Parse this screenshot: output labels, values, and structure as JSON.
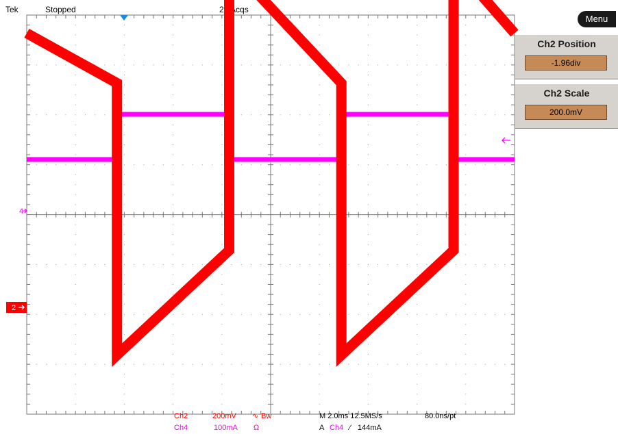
{
  "header": {
    "brand": "Tek",
    "run_state": "Stopped",
    "acquisitions": "26 Acqs"
  },
  "menu_button": "Menu",
  "side_panels": [
    {
      "title": "Ch2 Position",
      "value": "-1.96div"
    },
    {
      "title": "Ch2 Scale",
      "value": "200.0mV"
    }
  ],
  "markers": {
    "ch4": "4",
    "ch2": "2"
  },
  "readout": {
    "ch2_name": "Ch2",
    "ch2_scale": "200mV",
    "ch2_coupling": "∿",
    "ch4_name": "Ch4",
    "ch4_scale": "100mA",
    "ch4_term": "Ω",
    "bw": "Bw",
    "timebase": "M 2.0ms 12.5MS/s",
    "record": "80.0ns/pt",
    "trigger_prefix": "A",
    "trigger_source": "Ch4",
    "trigger_slope": "⁄",
    "trigger_level": "144mA"
  },
  "colors": {
    "ch2": "#ff0000",
    "ch4": "#ff00ff",
    "trigger_marker": "#1a8cd8",
    "panel_value_bg": "#c58a55"
  },
  "chart_data": {
    "type": "line",
    "x_unit": "ms",
    "x_range": [
      0,
      20
    ],
    "series": [
      {
        "name": "Ch4",
        "unit": "mA",
        "segments": [
          {
            "x": [
              0,
              3.7
            ],
            "y": [
              -10,
              -10
            ]
          },
          {
            "x": [
              3.7,
              8.3
            ],
            "y": [
              144,
              144
            ]
          },
          {
            "x": [
              8.3,
              12.9
            ],
            "y": [
              -10,
              -10
            ]
          },
          {
            "x": [
              12.9,
              17.5
            ],
            "y": [
              144,
              144
            ]
          },
          {
            "x": [
              17.5,
              20
            ],
            "y": [
              -10,
              -10
            ]
          }
        ]
      },
      {
        "name": "Ch2",
        "unit": "mV",
        "segments": [
          {
            "x": [
              0,
              3.7
            ],
            "y": [
              1480,
              1280
            ]
          },
          {
            "x": [
              3.7,
              8.3
            ],
            "y": [
              190,
              610
            ]
          },
          {
            "x": [
              8.3,
              12.9
            ],
            "y": [
              1760,
              1280
            ]
          },
          {
            "x": [
              12.9,
              17.5
            ],
            "y": [
              190,
              610
            ]
          },
          {
            "x": [
              17.5,
              20
            ],
            "y": [
              1760,
              1480
            ]
          }
        ]
      }
    ]
  }
}
